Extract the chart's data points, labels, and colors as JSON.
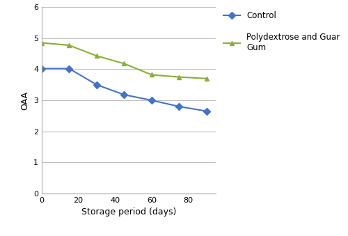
{
  "x_values": [
    0,
    15,
    30,
    45,
    60,
    75,
    90
  ],
  "control_y": [
    4.02,
    4.02,
    3.5,
    3.18,
    3.0,
    2.8,
    2.65
  ],
  "poly_y": [
    4.85,
    4.77,
    4.43,
    4.18,
    3.82,
    3.75,
    3.7
  ],
  "control_label": "Control",
  "poly_label": "Polydextrose and Guar\nGum",
  "control_color": "#4472C4",
  "poly_color": "#8AAD3B",
  "xlabel": "Storage period (days)",
  "ylabel": "OAA",
  "xlim": [
    0,
    95
  ],
  "ylim": [
    0,
    6
  ],
  "yticks": [
    0,
    1,
    2,
    3,
    4,
    5,
    6
  ],
  "xticks": [
    0,
    20,
    40,
    60,
    80
  ],
  "grid_color": "#BFBFBF",
  "background_color": "#FFFFFF",
  "marker_control": "D",
  "marker_poly": "^",
  "markersize": 5,
  "linewidth": 1.5
}
